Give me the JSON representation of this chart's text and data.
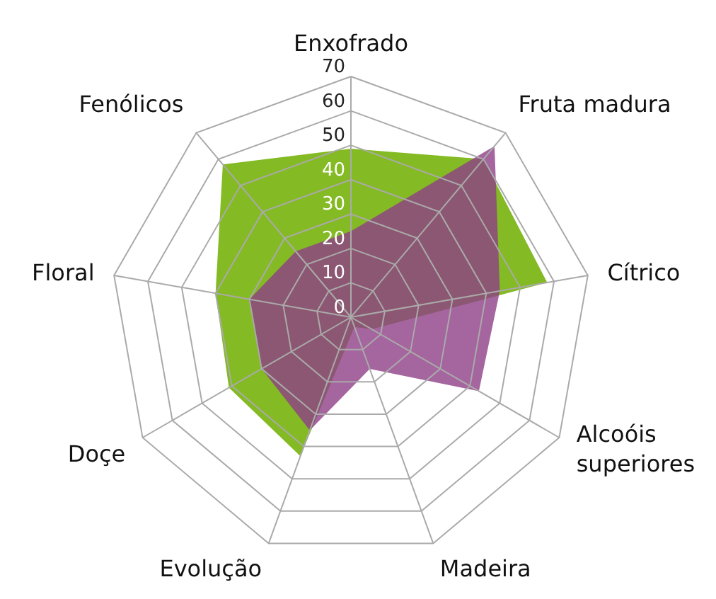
{
  "chart_data": {
    "type": "radar",
    "categories": [
      "Enxofrado",
      "Fruta madura",
      "Cítrico",
      "Alcoóis superiores",
      "Madeira",
      "Evolução",
      "Doçe",
      "Floral",
      "Fenólicos"
    ],
    "series": [
      {
        "color": "#84ba24",
        "values": [
          49,
          60,
          58,
          7,
          3,
          43,
          41,
          40,
          58
        ]
      },
      {
        "color": "#8e3f86",
        "values": [
          25,
          65,
          44,
          43,
          16,
          35,
          30,
          30,
          25
        ]
      }
    ],
    "ylim": [
      0,
      70
    ],
    "yticks": [
      0,
      10,
      20,
      30,
      40,
      50,
      60,
      70
    ],
    "grid": true
  }
}
